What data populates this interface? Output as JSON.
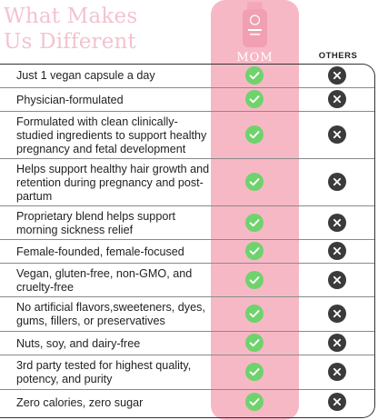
{
  "headline": {
    "line1": "What Makes",
    "line2": "Us Different"
  },
  "columns": {
    "brand": "MOM",
    "others": "OTHERS"
  },
  "colors": {
    "brand_pink": "#f7b8c6",
    "headline_pink": "#f3c3cf",
    "check_green": "#6fd36d",
    "cross_dark": "#3b3b3b"
  },
  "rows": [
    {
      "label": "Just 1 vegan capsule a day",
      "mom": "check-icon",
      "others": "cross-icon"
    },
    {
      "label": "Physician-formulated",
      "mom": "check-icon",
      "others": "cross-icon"
    },
    {
      "label": "Formulated with clean clinically-studied ingredients to support healthy pregnancy and fetal development",
      "mom": "check-icon",
      "others": "cross-icon"
    },
    {
      "label": "Helps support healthy hair growth and retention during pregnancy and post-partum",
      "mom": "check-icon",
      "others": "cross-icon"
    },
    {
      "label": "Proprietary blend helps support morning sickness relief",
      "mom": "check-icon",
      "others": "cross-icon"
    },
    {
      "label": "Female-founded, female-focused",
      "mom": "check-icon",
      "others": "cross-icon"
    },
    {
      "label": "Vegan, gluten-free, non-GMO, and cruelty-free",
      "mom": "check-icon",
      "others": "cross-icon"
    },
    {
      "label": "No artificial flavors,sweeteners, dyes, gums, fillers, or preservatives",
      "mom": "check-icon",
      "others": "cross-icon"
    },
    {
      "label": "Nuts, soy, and dairy-free",
      "mom": "check-icon",
      "others": "cross-icon"
    },
    {
      "label": "3rd party tested for highest quality, potency, and purity",
      "mom": "check-icon",
      "others": "cross-icon"
    },
    {
      "label": "Zero calories, zero sugar",
      "mom": "check-icon",
      "others": "cross-icon"
    }
  ]
}
